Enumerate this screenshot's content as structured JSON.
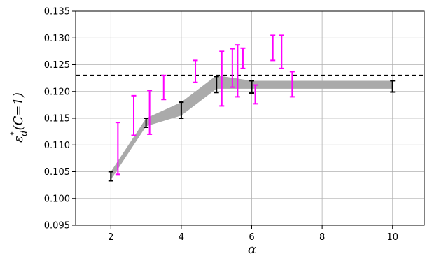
{
  "chart_data": {
    "type": "line",
    "title": "",
    "xlabel": "α",
    "ylabel": "ε*d(C=1)",
    "ylabel_parts": {
      "base": "ε",
      "sup": "*",
      "sub": "d",
      "tail": "(C=1)"
    },
    "xlim": [
      1.0,
      10.9
    ],
    "ylim": [
      0.095,
      0.135
    ],
    "xticks": [
      2,
      4,
      6,
      8,
      10
    ],
    "xtick_labels": [
      "2",
      "4",
      "6",
      "8",
      "10"
    ],
    "yticks": [
      0.095,
      0.1,
      0.105,
      0.11,
      0.115,
      0.12,
      0.125,
      0.13,
      0.135
    ],
    "ytick_labels": [
      "0.095",
      "0.100",
      "0.105",
      "0.110",
      "0.115",
      "0.120",
      "0.125",
      "0.130",
      "0.135"
    ],
    "grid": true,
    "legend": "none",
    "reference_line": {
      "y": 0.123,
      "style": "dashed",
      "color": "#000000"
    },
    "band": {
      "color": "#aaaaaa",
      "x": [
        2.0,
        3.0,
        4.0,
        5.0,
        6.0,
        10.0
      ],
      "lower": [
        0.1035,
        0.1135,
        0.1155,
        0.1205,
        0.1205,
        0.1205
      ],
      "upper": [
        0.105,
        0.115,
        0.118,
        0.123,
        0.122,
        0.122
      ]
    },
    "series": [
      {
        "color": "#000000",
        "type": "errorbar",
        "points": [
          {
            "x": 2.0,
            "low": 0.1033,
            "high": 0.105
          },
          {
            "x": 3.0,
            "low": 0.1133,
            "high": 0.115
          },
          {
            "x": 4.0,
            "low": 0.115,
            "high": 0.118
          },
          {
            "x": 5.0,
            "low": 0.1198,
            "high": 0.1228
          },
          {
            "x": 6.0,
            "low": 0.1197,
            "high": 0.122
          },
          {
            "x": 10.0,
            "low": 0.1199,
            "high": 0.122
          }
        ]
      },
      {
        "color": "#ff00ff",
        "type": "errorbar",
        "points": [
          {
            "x": 2.2,
            "low": 0.1045,
            "high": 0.1142
          },
          {
            "x": 2.65,
            "low": 0.1118,
            "high": 0.1192
          },
          {
            "x": 3.1,
            "low": 0.112,
            "high": 0.1202
          },
          {
            "x": 3.5,
            "low": 0.1185,
            "high": 0.123
          },
          {
            "x": 4.4,
            "low": 0.1217,
            "high": 0.1258
          },
          {
            "x": 5.15,
            "low": 0.1173,
            "high": 0.1275
          },
          {
            "x": 5.45,
            "low": 0.1208,
            "high": 0.128
          },
          {
            "x": 5.6,
            "low": 0.119,
            "high": 0.1287
          },
          {
            "x": 5.75,
            "low": 0.1243,
            "high": 0.1281
          },
          {
            "x": 6.1,
            "low": 0.1177,
            "high": 0.1212
          },
          {
            "x": 6.6,
            "low": 0.1258,
            "high": 0.1305
          },
          {
            "x": 6.85,
            "low": 0.1243,
            "high": 0.1305
          },
          {
            "x": 7.15,
            "low": 0.119,
            "high": 0.1237
          }
        ]
      }
    ]
  }
}
